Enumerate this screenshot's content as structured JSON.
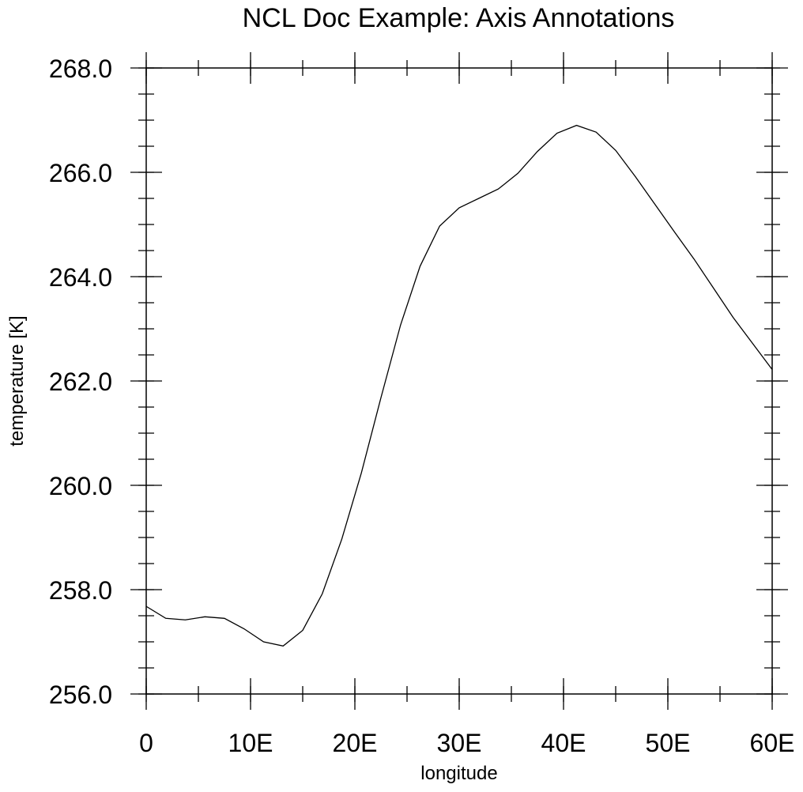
{
  "chart_data": {
    "type": "line",
    "title": "NCL Doc Example:  Axis Annotations",
    "xlabel": "longitude",
    "ylabel": "temperature  [K]",
    "xlim": [
      0,
      60
    ],
    "ylim": [
      256,
      268
    ],
    "x_ticks": [
      {
        "value": 0,
        "label": "0"
      },
      {
        "value": 10,
        "label": "10E"
      },
      {
        "value": 20,
        "label": "20E"
      },
      {
        "value": 30,
        "label": "30E"
      },
      {
        "value": 40,
        "label": "40E"
      },
      {
        "value": 50,
        "label": "50E"
      },
      {
        "value": 60,
        "label": "60E"
      }
    ],
    "x_minor_step": 5,
    "y_ticks": [
      {
        "value": 256,
        "label": "256.0"
      },
      {
        "value": 258,
        "label": "258.0"
      },
      {
        "value": 260,
        "label": "260.0"
      },
      {
        "value": 262,
        "label": "262.0"
      },
      {
        "value": 264,
        "label": "264.0"
      },
      {
        "value": 266,
        "label": "266.0"
      },
      {
        "value": 268,
        "label": "268.0"
      }
    ],
    "y_minor_step": 0.5,
    "grid": false,
    "series": [
      {
        "x": [
          0,
          1.875,
          3.75,
          5.625,
          7.5,
          9.375,
          11.25,
          13.125,
          15,
          16.875,
          18.75,
          20.625,
          22.5,
          24.375,
          26.25,
          28.125,
          30,
          31.875,
          33.75,
          35.625,
          37.5,
          39.375,
          41.25,
          43.125,
          45,
          46.875,
          48.75,
          50.625,
          52.5,
          54.375,
          56.25,
          58.125,
          60
        ],
        "y": [
          257.68,
          257.45,
          257.42,
          257.48,
          257.45,
          257.25,
          257.0,
          256.92,
          257.22,
          257.92,
          258.97,
          260.24,
          261.68,
          263.07,
          264.2,
          264.97,
          265.32,
          265.5,
          265.68,
          265.98,
          266.4,
          266.75,
          266.9,
          266.77,
          266.42,
          265.92,
          265.39,
          264.86,
          264.34,
          263.78,
          263.22,
          262.72,
          262.22
        ]
      }
    ]
  }
}
